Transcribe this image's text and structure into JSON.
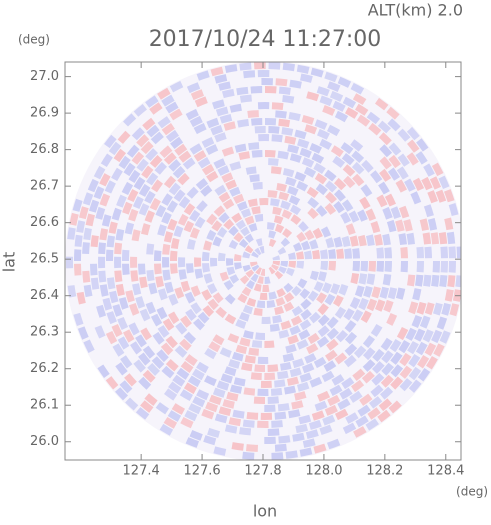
{
  "chart_data": {
    "type": "ppi",
    "title": "2017/10/24 11:27:00",
    "annotation": "ALT(km) 2.0",
    "y_unit": "(deg)",
    "x_unit": "(deg)",
    "xlabel": "lon",
    "ylabel": "lat",
    "xlim": [
      127.15,
      128.45
    ],
    "ylim": [
      25.95,
      27.04
    ],
    "xticks": [
      127.4,
      127.6,
      127.8,
      {
        "value": 128,
        "label": "128.0"
      },
      128.2,
      128.4
    ],
    "yticks": [
      {
        "value": 26,
        "label": "26.0"
      },
      26.1,
      26.2,
      26.3,
      26.4,
      26.5,
      26.6,
      26.7,
      26.8,
      26.9,
      {
        "value": 27,
        "label": "27.0"
      }
    ]
  }
}
